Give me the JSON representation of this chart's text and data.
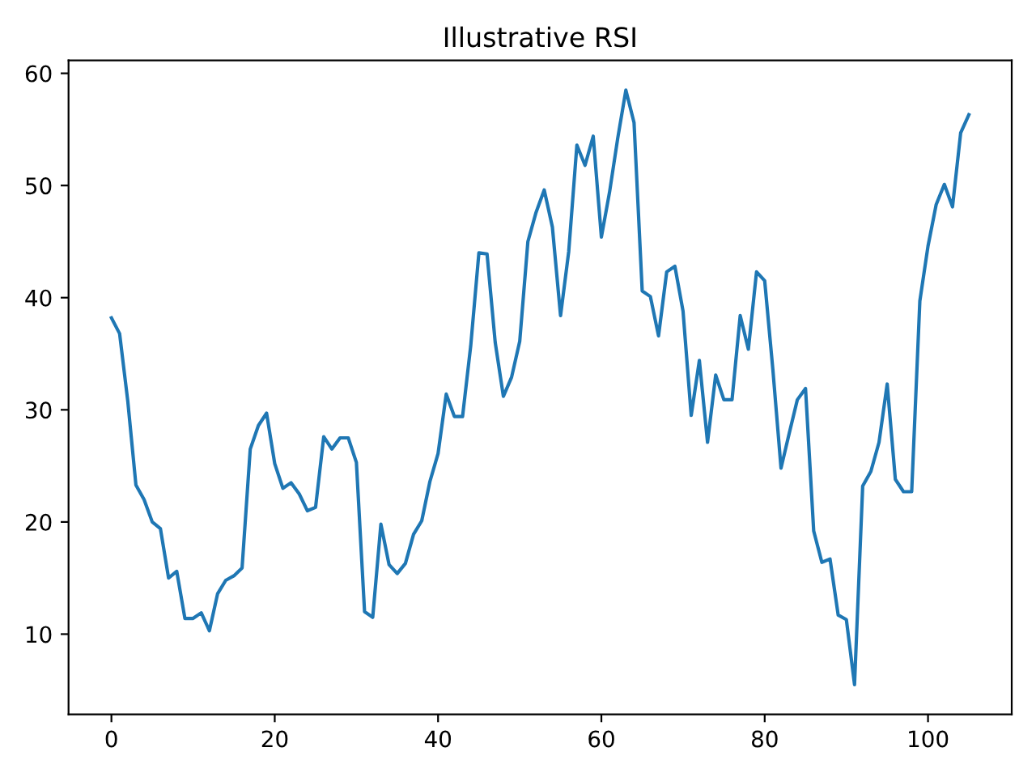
{
  "chart_data": {
    "type": "line",
    "title": "Illustrative RSI",
    "x": [
      0,
      1,
      2,
      3,
      4,
      5,
      6,
      7,
      8,
      9,
      10,
      11,
      12,
      13,
      14,
      15,
      16,
      17,
      18,
      19,
      20,
      21,
      22,
      23,
      24,
      25,
      26,
      27,
      28,
      29,
      30,
      31,
      32,
      33,
      34,
      35,
      36,
      37,
      38,
      39,
      40,
      41,
      42,
      43,
      44,
      45,
      46,
      47,
      48,
      49,
      50,
      51,
      52,
      53,
      54,
      55,
      56,
      57,
      58,
      59,
      60,
      61,
      62,
      63,
      64,
      65,
      66,
      67,
      68,
      69,
      70,
      71,
      72,
      73,
      74,
      75,
      76,
      77,
      78,
      79,
      80,
      81,
      82,
      83,
      84,
      85,
      86,
      87,
      88,
      89,
      90,
      91,
      92,
      93,
      94,
      95,
      96,
      97,
      98,
      99,
      100,
      101,
      102,
      103,
      104,
      105
    ],
    "series": [
      {
        "color": "#1f77b4",
        "values": [
          38.2,
          36.8,
          30.8,
          23.3,
          22.0,
          20.0,
          19.4,
          15.0,
          15.6,
          11.4,
          11.4,
          11.9,
          10.3,
          13.6,
          14.8,
          15.2,
          15.9,
          26.5,
          28.6,
          29.7,
          25.2,
          23.0,
          23.5,
          22.5,
          21.0,
          21.3,
          27.6,
          26.5,
          27.5,
          27.5,
          25.3,
          12.0,
          11.5,
          19.8,
          16.2,
          15.4,
          16.3,
          18.9,
          20.1,
          23.6,
          26.1,
          31.4,
          29.4,
          29.4,
          35.7,
          44.0,
          43.9,
          36.0,
          31.2,
          32.9,
          36.1,
          45.0,
          47.6,
          49.6,
          46.3,
          38.4,
          44.1,
          53.6,
          51.8,
          54.4,
          45.4,
          49.4,
          54.2,
          58.5,
          55.6,
          40.6,
          40.1,
          36.6,
          42.3,
          42.8,
          38.8,
          29.5,
          34.4,
          27.1,
          33.1,
          30.9,
          30.9,
          38.4,
          35.4,
          42.3,
          41.5,
          33.6,
          24.8,
          27.9,
          30.9,
          31.9,
          19.2,
          16.4,
          16.7,
          11.7,
          11.3,
          5.5,
          23.2,
          24.5,
          27.1,
          32.3,
          23.8,
          22.7,
          22.7,
          39.7,
          44.6,
          48.3,
          50.1,
          48.1,
          54.7,
          56.3
        ]
      }
    ],
    "xlim": [
      -5.25,
      110.25
    ],
    "ylim": [
      2.85,
      61.15
    ],
    "xticks": [
      0,
      20,
      40,
      60,
      80,
      100
    ],
    "yticks": [
      10,
      20,
      30,
      40,
      50,
      60
    ],
    "grid": false,
    "legend": false,
    "marker": "none",
    "line_style": "solid"
  }
}
